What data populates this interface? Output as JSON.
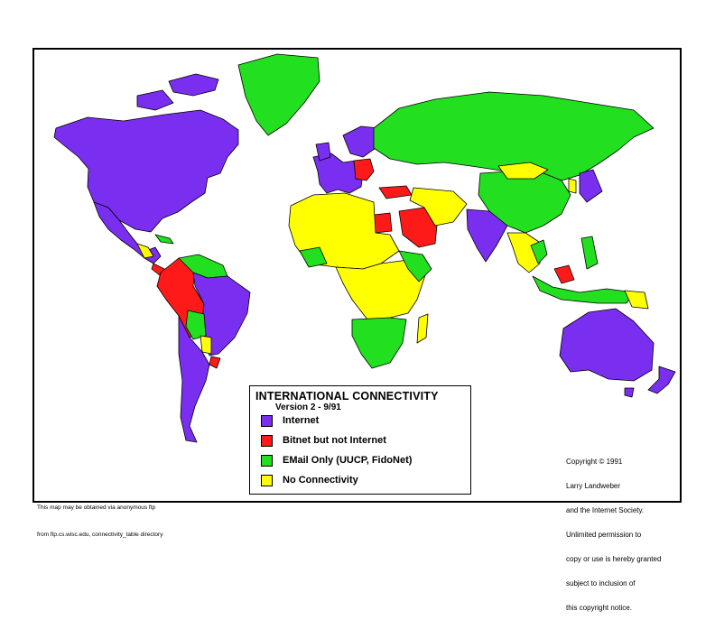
{
  "colors": {
    "internet": "#7a2ff0",
    "bitnet": "#ff1a1a",
    "email": "#22e01f",
    "none": "#ffff00",
    "border": "#000000",
    "background": "#ffffff"
  },
  "legend": {
    "title": "INTERNATIONAL CONNECTIVITY",
    "version": "Version 2 - 9/91",
    "items": [
      {
        "key": "internet",
        "label": "Internet"
      },
      {
        "key": "bitnet",
        "label": "Bitnet but not Internet"
      },
      {
        "key": "email",
        "label": "EMail Only (UUCP, FidoNet)"
      },
      {
        "key": "none",
        "label": "No Connectivity"
      }
    ]
  },
  "copyright": {
    "lines": [
      "Copyright © 1991",
      "Larry Landweber",
      "and the Internet Society.",
      "Unlimited permission to",
      "copy or use is hereby granted",
      "subject to inclusion of",
      "this copyright notice."
    ]
  },
  "ftp_note": {
    "lines": [
      "This map may be obtained via anonymous ftp",
      "from ftp.cs.wisc.edu, connectivity_table directory"
    ]
  }
}
